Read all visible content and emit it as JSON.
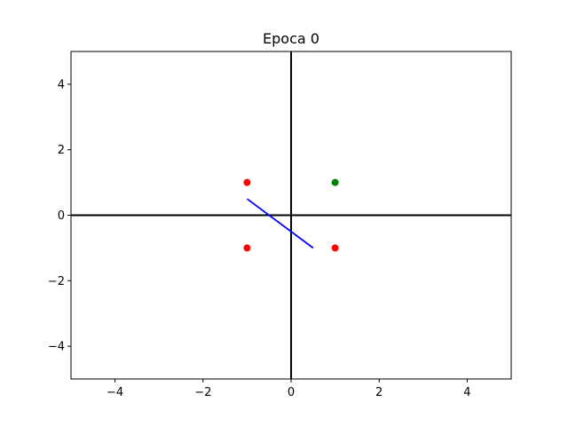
{
  "chart_data": {
    "type": "scatter",
    "title": "Epoca 0",
    "xlabel": "",
    "ylabel": "",
    "xlim": [
      -5,
      5
    ],
    "ylim": [
      -5,
      5
    ],
    "x_ticks": [
      -4,
      -2,
      0,
      2,
      4
    ],
    "y_ticks": [
      -4,
      -2,
      0,
      2,
      4
    ],
    "x_tick_labels": [
      "−4",
      "−2",
      "0",
      "2",
      "4"
    ],
    "y_tick_labels": [
      "−4",
      "−2",
      "0",
      "2",
      "4"
    ],
    "grid": false,
    "axes_lines": [
      {
        "orientation": "horizontal",
        "y": 0,
        "color": "#000000"
      },
      {
        "orientation": "vertical",
        "x": 0,
        "color": "#000000"
      }
    ],
    "points": [
      {
        "x": -1,
        "y": 1,
        "color": "#ff0000"
      },
      {
        "x": 1,
        "y": 1,
        "color": "#008000"
      },
      {
        "x": -1,
        "y": -1,
        "color": "#ff0000"
      },
      {
        "x": 1,
        "y": -1,
        "color": "#ff0000"
      }
    ],
    "line": {
      "x": [
        -1,
        0.5
      ],
      "y": [
        0.5,
        -1
      ],
      "color": "#0000ff"
    }
  }
}
